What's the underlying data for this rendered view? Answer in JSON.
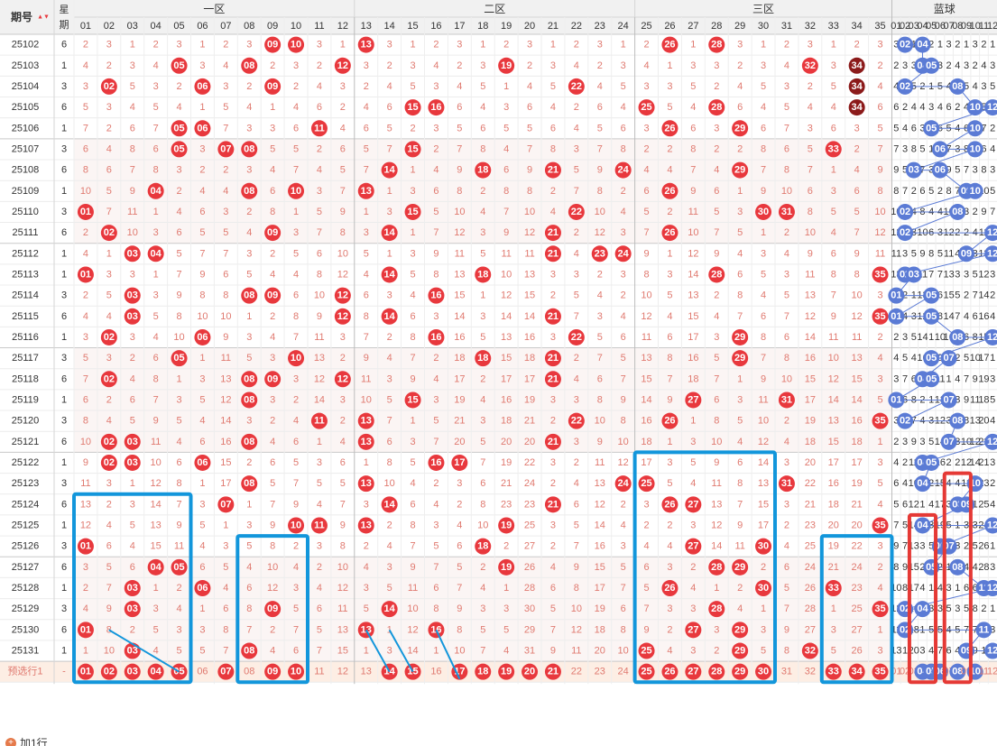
{
  "headers": {
    "period": "期号",
    "sort_arrow": "▲▼",
    "weekday_top": "星",
    "weekday_bottom": "期",
    "zone1": "一区",
    "zone2": "二区",
    "zone3": "三区",
    "blue": "蓝球"
  },
  "numbers": {
    "red": [
      "01",
      "02",
      "03",
      "04",
      "05",
      "06",
      "07",
      "08",
      "09",
      "10",
      "11",
      "12",
      "13",
      "14",
      "15",
      "16",
      "17",
      "18",
      "19",
      "20",
      "21",
      "22",
      "23",
      "24",
      "25",
      "26",
      "27",
      "28",
      "29",
      "30",
      "31",
      "32",
      "33",
      "34",
      "35"
    ],
    "blue": [
      "01",
      "02",
      "03",
      "04",
      "05",
      "06",
      "07",
      "08",
      "09",
      "10",
      "11",
      "12"
    ]
  },
  "predict_label": "预选行1",
  "predict_dash": "-",
  "add_row": "加1行",
  "colors": {
    "red_ball": "#e8383d",
    "dark_ball": "#8b1a1a",
    "blue_ball": "#5b7bd5",
    "miss_text": "#e07a70",
    "blue_miss_text": "#333333",
    "header_bg": "#f1f1f1",
    "predict_bg": "#fdeee4",
    "highlight_blue": "#1296db",
    "highlight_red": "#e53935"
  },
  "chart_data": {
    "type": "table",
    "title": "",
    "columns": [
      "期号",
      "星期",
      "01",
      "02",
      "03",
      "04",
      "05",
      "06",
      "07",
      "08",
      "09",
      "10",
      "11",
      "12",
      "13",
      "14",
      "15",
      "16",
      "17",
      "18",
      "19",
      "20",
      "21",
      "22",
      "23",
      "24",
      "25",
      "26",
      "27",
      "28",
      "29",
      "30",
      "31",
      "32",
      "33",
      "34",
      "35",
      "蓝01",
      "蓝02",
      "蓝03",
      "蓝04",
      "蓝05",
      "蓝06",
      "蓝07",
      "蓝08",
      "蓝09",
      "蓝10",
      "蓝11",
      "蓝12"
    ],
    "rows": [
      {
        "period": "25102",
        "weekday": "6",
        "red": [
          9,
          10,
          13,
          26,
          28
        ],
        "blue": [
          2,
          4
        ]
      },
      {
        "period": "25103",
        "weekday": "1",
        "red": [
          5,
          8,
          12,
          19,
          32,
          34
        ],
        "blue": [
          4,
          5
        ]
      },
      {
        "period": "25104",
        "weekday": "3",
        "red": [
          2,
          6,
          9,
          22,
          34
        ],
        "blue": [
          2,
          8
        ]
      },
      {
        "period": "25105",
        "weekday": "6",
        "red": [
          15,
          16,
          25,
          28,
          34
        ],
        "blue": [
          10,
          12
        ]
      },
      {
        "period": "25106",
        "weekday": "1",
        "red": [
          5,
          6,
          11,
          26,
          29
        ],
        "blue": [
          5,
          10
        ]
      },
      {
        "period": "25107",
        "weekday": "3",
        "red": [
          5,
          7,
          8,
          15,
          33
        ],
        "blue": [
          6,
          10
        ]
      },
      {
        "period": "25108",
        "weekday": "6",
        "red": [
          14,
          18,
          21,
          24,
          29
        ],
        "blue": [
          3,
          6
        ]
      },
      {
        "period": "25109",
        "weekday": "1",
        "red": [
          4,
          8,
          10,
          13,
          26
        ],
        "blue": [
          9,
          10
        ]
      },
      {
        "period": "25110",
        "weekday": "3",
        "red": [
          1,
          15,
          22,
          30,
          31
        ],
        "blue": [
          2,
          8
        ]
      },
      {
        "period": "25111",
        "weekday": "6",
        "red": [
          2,
          9,
          14,
          21,
          26
        ],
        "blue": [
          2,
          12
        ]
      },
      {
        "period": "25112",
        "weekday": "1",
        "red": [
          3,
          4,
          21,
          23,
          24
        ],
        "blue": [
          9,
          12
        ]
      },
      {
        "period": "25113",
        "weekday": "1",
        "red": [
          1,
          14,
          18,
          28,
          35
        ],
        "blue": [
          2,
          3
        ]
      },
      {
        "period": "25114",
        "weekday": "3",
        "red": [
          3,
          8,
          9,
          12,
          16
        ],
        "blue": [
          1,
          5
        ]
      },
      {
        "period": "25115",
        "weekday": "6",
        "red": [
          3,
          12,
          14,
          21,
          35
        ],
        "blue": [
          1,
          5
        ]
      },
      {
        "period": "25116",
        "weekday": "1",
        "red": [
          2,
          6,
          16,
          22,
          29
        ],
        "blue": [
          8,
          12
        ]
      },
      {
        "period": "25117",
        "weekday": "3",
        "red": [
          5,
          10,
          18,
          21,
          29
        ],
        "blue": [
          5,
          7
        ]
      },
      {
        "period": "25118",
        "weekday": "6",
        "red": [
          2,
          8,
          9,
          12,
          21
        ],
        "blue": [
          4,
          5
        ]
      },
      {
        "period": "25119",
        "weekday": "1",
        "red": [
          8,
          15,
          27,
          31
        ],
        "blue": [
          1,
          7
        ]
      },
      {
        "period": "25120",
        "weekday": "3",
        "red": [
          11,
          13,
          22,
          26,
          35
        ],
        "blue": [
          2,
          8
        ]
      },
      {
        "period": "25121",
        "weekday": "6",
        "red": [
          2,
          3,
          8,
          13,
          21
        ],
        "blue": [
          7,
          12
        ]
      },
      {
        "period": "25122",
        "weekday": "1",
        "red": [
          2,
          3,
          6,
          16,
          17
        ],
        "blue": [
          4,
          5
        ]
      },
      {
        "period": "25123",
        "weekday": "3",
        "red": [
          8,
          13,
          24,
          25,
          31
        ],
        "blue": [
          4,
          10
        ]
      },
      {
        "period": "25124",
        "weekday": "6",
        "red": [
          7,
          14,
          21,
          26,
          27
        ],
        "blue": [
          8,
          9
        ]
      },
      {
        "period": "25125",
        "weekday": "1",
        "red": [
          10,
          11,
          13,
          19,
          35
        ],
        "blue": [
          4,
          12
        ]
      },
      {
        "period": "25126",
        "weekday": "3",
        "red": [
          1,
          18,
          27,
          30
        ],
        "blue": [
          6,
          7
        ]
      },
      {
        "period": "25127",
        "weekday": "6",
        "red": [
          4,
          5,
          19,
          28,
          29
        ],
        "blue": [
          5,
          8
        ]
      },
      {
        "period": "25128",
        "weekday": "1",
        "red": [
          3,
          6,
          26,
          30,
          33
        ],
        "blue": [
          11,
          12
        ]
      },
      {
        "period": "25129",
        "weekday": "3",
        "red": [
          3,
          9,
          14,
          28,
          35
        ],
        "blue": [
          2,
          4
        ]
      },
      {
        "period": "25130",
        "weekday": "6",
        "red": [
          1,
          13,
          16,
          27,
          29
        ],
        "blue": [
          2,
          11
        ]
      },
      {
        "period": "25131",
        "weekday": "1",
        "red": [
          3,
          8,
          25,
          29,
          32
        ],
        "blue": [
          9,
          12
        ]
      }
    ],
    "predict": {
      "red": [
        1,
        2,
        3,
        4,
        5,
        7,
        9,
        10,
        14,
        15,
        17,
        18,
        19,
        20,
        21,
        25,
        26,
        27,
        28,
        29,
        30,
        33,
        34,
        35
      ],
      "blue": [
        4,
        5,
        6,
        8,
        10
      ]
    }
  }
}
